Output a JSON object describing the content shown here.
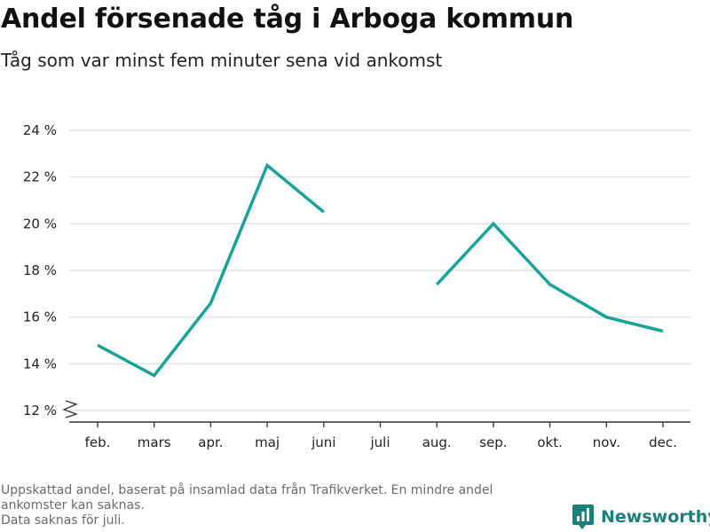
{
  "header": {
    "title": "Andel försenade tåg i Arboga kommun",
    "subtitle": "Tåg som var minst fem minuter sena vid ankomst"
  },
  "footer": {
    "note_lines": [
      "Uppskattad andel, baserat på insamlad data från Trafikverket. En mindre andel",
      "ankomster kan saknas.",
      "Data saknas för juli."
    ],
    "brand": "Newsworthy",
    "brand_icon": "bar-chart-logo-icon",
    "brand_color": "#1b7f7a"
  },
  "chart_data": {
    "type": "line",
    "categories": [
      "feb.",
      "mars",
      "apr.",
      "maj",
      "juni",
      "juli",
      "aug.",
      "sep.",
      "okt.",
      "nov.",
      "dec."
    ],
    "series": [
      {
        "values": [
          14.8,
          13.5,
          16.6,
          22.5,
          20.5,
          null,
          17.4,
          20.0,
          17.4,
          16.0,
          15.4
        ]
      }
    ],
    "yticks": [
      12,
      14,
      16,
      18,
      20,
      22,
      24
    ],
    "ytick_labels": [
      "12 %",
      "14 %",
      "16 %",
      "18 %",
      "20 %",
      "22 %",
      "24 %"
    ],
    "ylim": [
      12,
      24
    ],
    "y_axis_break": true,
    "grid": true,
    "line_color": "#17a398",
    "grid_color": "#dcdcdc",
    "axis_color": "#333333"
  }
}
